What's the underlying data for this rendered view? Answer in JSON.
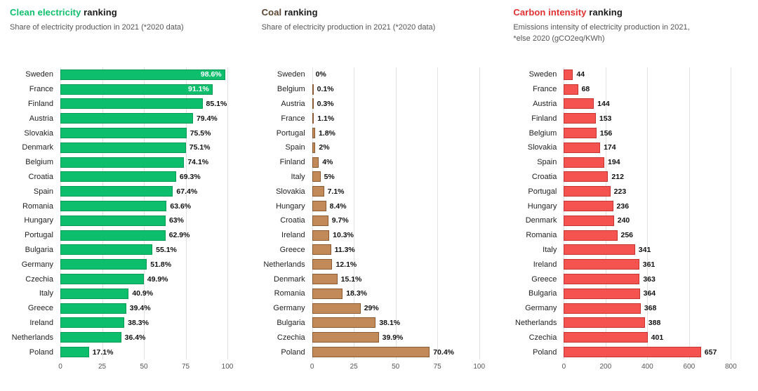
{
  "page": {
    "background": "#ffffff"
  },
  "chart_data": [
    {
      "type": "bar",
      "orientation": "horizontal",
      "title": "Clean electricity ranking",
      "title_highlight": "Clean electricity",
      "title_rest": " ranking",
      "subtitle": "Share of electricity production in 2021 (*2020 data)",
      "accent_color": "#0dbf6c",
      "bar_color": "#0dbf6c",
      "bar_border_color": "#089a54",
      "categories": [
        "Sweden",
        "France",
        "Finland",
        "Austria",
        "Slovakia",
        "Denmark",
        "Belgium",
        "Croatia",
        "Spain",
        "Romania",
        "Hungary",
        "Portugal",
        "Bulgaria",
        "Germany",
        "Czechia",
        "Italy",
        "Greece",
        "Ireland",
        "Netherlands",
        "Poland"
      ],
      "values": [
        98.6,
        91.1,
        85.1,
        79.4,
        75.5,
        75.1,
        74.1,
        69.3,
        67.4,
        63.6,
        63,
        62.9,
        55.1,
        51.8,
        49.9,
        40.9,
        39.4,
        38.3,
        36.4,
        17.1
      ],
      "value_labels": [
        "98.6%",
        "91.1%",
        "85.1%",
        "79.4%",
        "75.5%",
        "75.1%",
        "74.1%",
        "69.3%",
        "67.4%",
        "63.6%",
        "63%",
        "62.9%",
        "55.1%",
        "51.8%",
        "49.9%",
        "40.9%",
        "39.4%",
        "38.3%",
        "36.4%",
        "17.1%"
      ],
      "inside_label_indices": [
        0,
        1
      ],
      "xlim": [
        0,
        100
      ],
      "xticks": [
        0,
        25,
        50,
        75,
        100
      ],
      "grid": true,
      "legend": false
    },
    {
      "type": "bar",
      "orientation": "horizontal",
      "title": "Coal ranking",
      "title_highlight": "Coal",
      "title_rest": " ranking",
      "subtitle": "Share of electricity production in 2021 (*2020 data)",
      "accent_color": "#5a4430",
      "bar_color": "#c18a58",
      "bar_border_color": "#8a5a32",
      "categories": [
        "Sweden",
        "Belgium",
        "Austria",
        "France",
        "Portugal",
        "Spain",
        "Finland",
        "Italy",
        "Slovakia",
        "Hungary",
        "Croatia",
        "Ireland",
        "Greece",
        "Netherlands",
        "Denmark",
        "Romania",
        "Germany",
        "Bulgaria",
        "Czechia",
        "Poland"
      ],
      "values": [
        0,
        0.1,
        0.3,
        1.1,
        1.8,
        2,
        4,
        5,
        7.1,
        8.4,
        9.7,
        10.3,
        11.3,
        12.1,
        15.1,
        18.3,
        29,
        38.1,
        39.9,
        70.4
      ],
      "value_labels": [
        "0%",
        "0.1%",
        "0.3%",
        "1.1%",
        "1.8%",
        "2%",
        "4%",
        "5%",
        "7.1%",
        "8.4%",
        "9.7%",
        "10.3%",
        "11.3%",
        "12.1%",
        "15.1%",
        "18.3%",
        "29%",
        "38.1%",
        "39.9%",
        "70.4%"
      ],
      "inside_label_indices": [],
      "xlim": [
        0,
        100
      ],
      "xticks": [
        0,
        25,
        50,
        75,
        100
      ],
      "grid": true,
      "legend": false
    },
    {
      "type": "bar",
      "orientation": "horizontal",
      "title": "Carbon intensity ranking",
      "title_highlight": "Carbon intensity",
      "title_rest": " ranking",
      "subtitle": "Emissions intensity of electricity production in 2021, *else 2020 (gCO2eq/KWh)",
      "accent_color": "#e03131",
      "bar_color": "#f4534f",
      "bar_border_color": "#c43532",
      "categories": [
        "Sweden",
        "France",
        "Austria",
        "Finland",
        "Belgium",
        "Slovakia",
        "Spain",
        "Croatia",
        "Portugal",
        "Hungary",
        "Denmark",
        "Romania",
        "Italy",
        "Ireland",
        "Greece",
        "Bulgaria",
        "Germany",
        "Netherlands",
        "Czechia",
        "Poland"
      ],
      "values": [
        44,
        68,
        144,
        153,
        156,
        174,
        194,
        212,
        223,
        236,
        240,
        256,
        341,
        361,
        363,
        364,
        368,
        388,
        401,
        657
      ],
      "value_labels": [
        "44",
        "68",
        "144",
        "153",
        "156",
        "174",
        "194",
        "212",
        "223",
        "236",
        "240",
        "256",
        "341",
        "361",
        "363",
        "364",
        "368",
        "388",
        "401",
        "657"
      ],
      "inside_label_indices": [],
      "xlim": [
        0,
        800
      ],
      "xticks": [
        0,
        200,
        400,
        600,
        800
      ],
      "grid": true,
      "legend": false
    }
  ]
}
